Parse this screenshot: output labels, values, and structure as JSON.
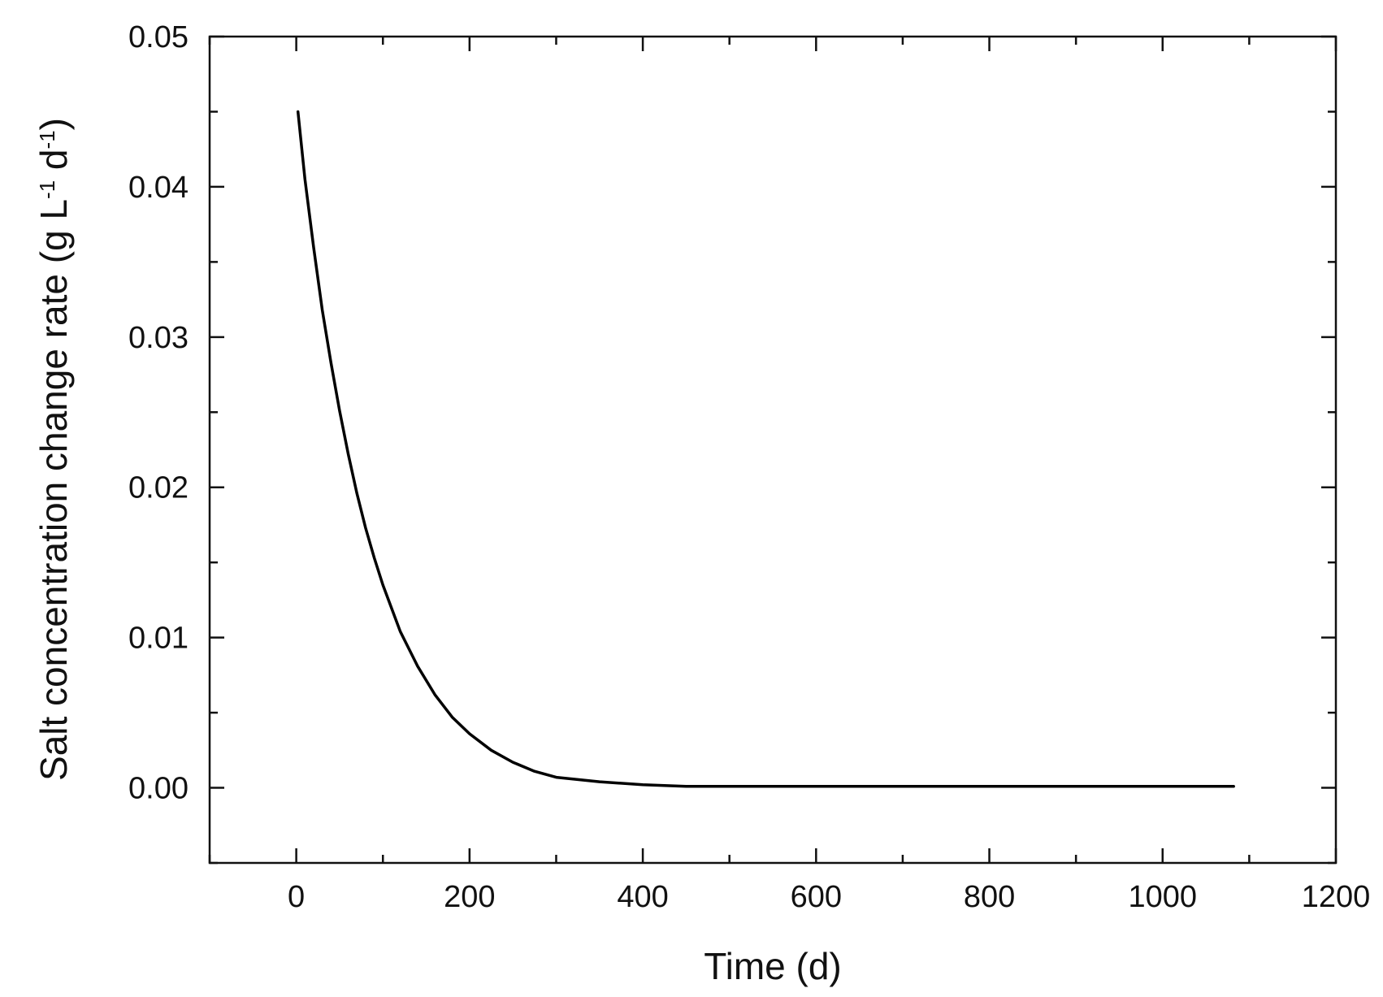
{
  "chart_data": {
    "type": "line",
    "title": "",
    "xlabel": "Time (d)",
    "ylabel": {
      "parts": [
        {
          "text": "Salt concentration change rate (g L",
          "sup": false
        },
        {
          "text": "-1",
          "sup": true
        },
        {
          "text": " d",
          "sup": false
        },
        {
          "text": "-1",
          "sup": true
        },
        {
          "text": ")",
          "sup": false
        }
      ]
    },
    "xlim": [
      -100,
      1200
    ],
    "ylim": [
      -0.005,
      0.05
    ],
    "x_ticks": [
      0,
      200,
      400,
      600,
      800,
      1000,
      1200
    ],
    "x_tick_labels": [
      "0",
      "200",
      "400",
      "600",
      "800",
      "1000",
      "1200"
    ],
    "x_minor_ticks": [
      -100,
      100,
      300,
      500,
      700,
      900,
      1100
    ],
    "y_ticks": [
      0.0,
      0.01,
      0.02,
      0.03,
      0.04,
      0.05
    ],
    "y_tick_labels": [
      "0.00",
      "0.01",
      "0.02",
      "0.03",
      "0.04",
      "0.05"
    ],
    "y_minor_ticks": [
      -0.005,
      0.005,
      0.015,
      0.025,
      0.035,
      0.045
    ],
    "grid": false,
    "legend": "none",
    "line_color": "#000000",
    "series": [
      {
        "x": [
          2,
          10,
          20,
          30,
          40,
          50,
          60,
          70,
          80,
          90,
          100,
          120,
          140,
          160,
          180,
          200,
          225,
          250,
          275,
          300,
          350,
          400,
          450,
          500,
          600,
          700,
          800,
          900,
          1000,
          1082
        ],
        "y": [
          0.045,
          0.0405,
          0.036,
          0.0318,
          0.0283,
          0.0251,
          0.0222,
          0.0196,
          0.0173,
          0.0153,
          0.0135,
          0.0104,
          0.0081,
          0.0062,
          0.0047,
          0.0036,
          0.0025,
          0.0017,
          0.0011,
          0.0007,
          0.0004,
          0.0002,
          0.0001,
          0.0001,
          0.0001,
          0.0001,
          0.0001,
          0.0001,
          0.0001,
          0.0001
        ]
      }
    ]
  }
}
